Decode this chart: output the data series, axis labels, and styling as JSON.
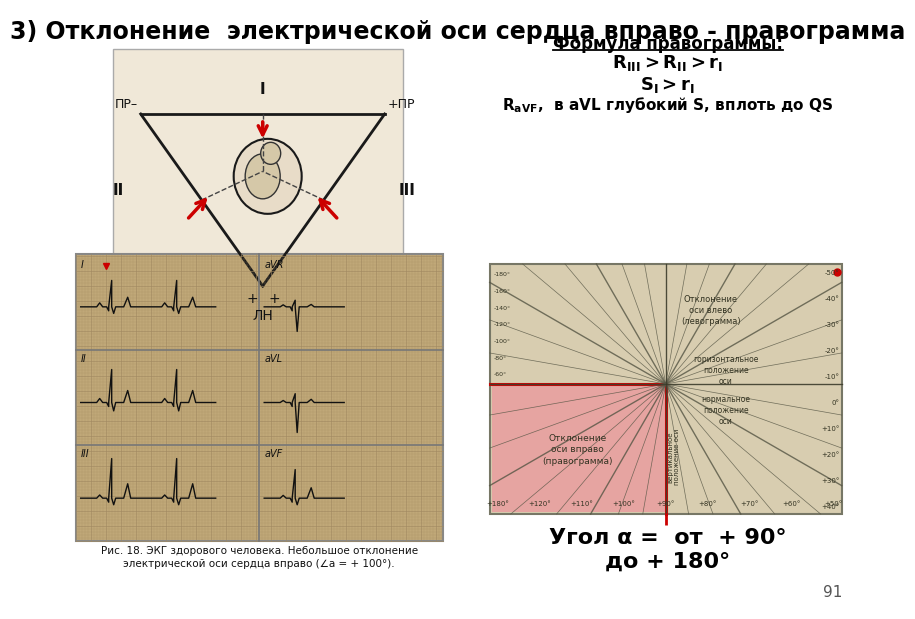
{
  "title": "3) Отклонение  электрической оси сердца вправо - правограмма",
  "title_fontsize": 17,
  "bg_color": "#ffffff",
  "formula_title": "Формула правограммы:",
  "angle_text1": "Угол α =  от  + 90°",
  "angle_text2": "до + 180°",
  "page_number": "91",
  "arrow_color": "#cc0000",
  "tri_bg": "#f0e8d8",
  "tri_border": "#999999",
  "ecg_bg": "#c0a878",
  "ecg_grid_color": "#a08860",
  "ecg_line_color": "#111111",
  "diag_bg": "#d8cdb0",
  "diag_pink": "#e8a0a0",
  "diag_border": "#888866",
  "diag_red_line": "#cc0000",
  "diag_text_color": "#333322",
  "caption_text": "Рис. 18. ЭКГ здорового человека. Небольшое отклонение\nэлектрической оси сердца вправо (∠a = + 100°).",
  "top_angle_labels": [
    "+180°",
    "+120°",
    "+110°",
    "+100°",
    "+90°",
    "+80°",
    "+70°",
    "+60°",
    "+50°"
  ],
  "right_angle_labels": [
    "-50°",
    "-40°",
    "-30°",
    "-20°",
    "-10°",
    "0°",
    "+10°",
    "+20°",
    "+30°",
    "+40°"
  ]
}
